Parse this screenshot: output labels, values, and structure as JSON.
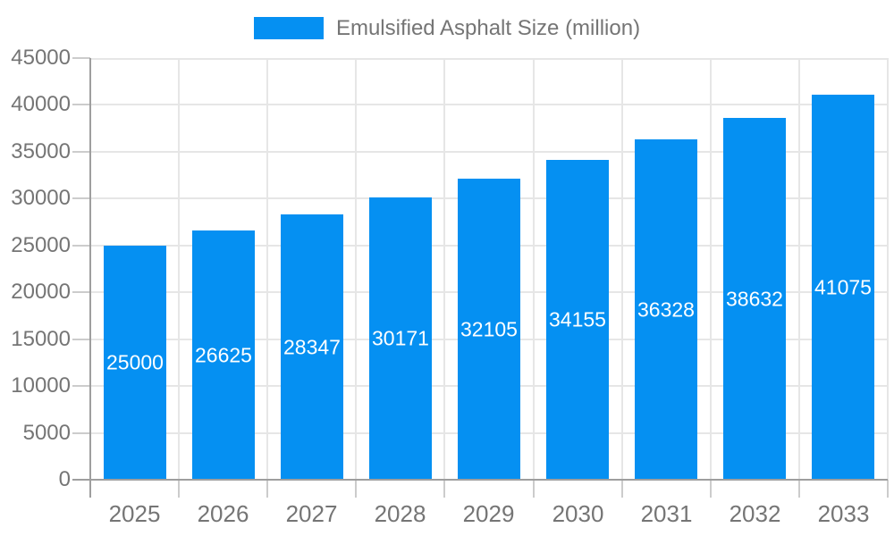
{
  "chart_data": {
    "type": "bar",
    "title": "",
    "legend": [
      "Emulsified Asphalt Size (million)"
    ],
    "legend_position": "top-center",
    "categories": [
      "2025",
      "2026",
      "2027",
      "2028",
      "2029",
      "2030",
      "2031",
      "2032",
      "2033"
    ],
    "series": [
      {
        "name": "Emulsified Asphalt Size (million)",
        "values": [
          25000,
          26625,
          28347,
          30171,
          32105,
          34155,
          36328,
          38632,
          41075
        ]
      }
    ],
    "value_labels": {
      "visible": true,
      "position": "inside-middle",
      "color": "#ffffff"
    },
    "xlabel": "",
    "ylabel": "",
    "ylim": [
      0,
      45000
    ],
    "yticks": [
      0,
      5000,
      10000,
      15000,
      20000,
      25000,
      30000,
      35000,
      40000,
      45000
    ],
    "grid": {
      "horizontal": true,
      "vertical": true
    }
  },
  "colors": {
    "bar": "#0590f2",
    "axis": "#9e9e9e",
    "grid": "#e6e6e6",
    "tick": "#cccccc",
    "text": "#757575",
    "value_label": "#ffffff",
    "background": "#ffffff"
  }
}
